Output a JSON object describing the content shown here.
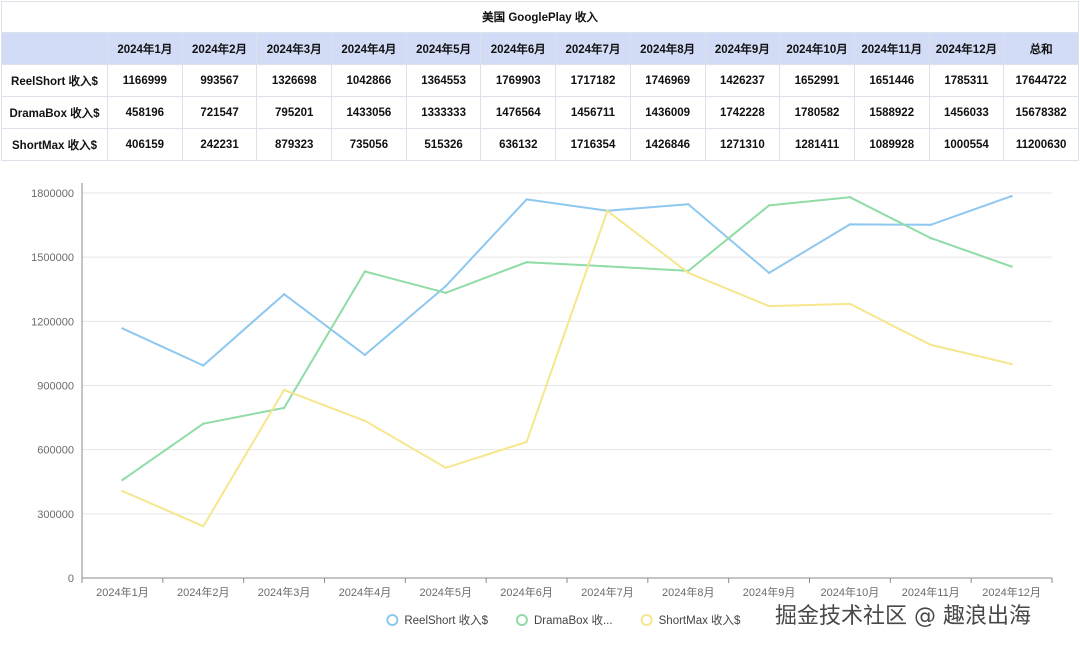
{
  "table": {
    "title": "美国 GooglePlay 收入",
    "columns": [
      "2024年1月",
      "2024年2月",
      "2024年3月",
      "2024年4月",
      "2024年5月",
      "2024年6月",
      "2024年7月",
      "2024年8月",
      "2024年9月",
      "2024年10月",
      "2024年11月",
      "2024年12月",
      "总和"
    ],
    "rows": [
      {
        "label": "ReelShort 收入$",
        "cells": [
          "1166999",
          "993567",
          "1326698",
          "1042866",
          "1364553",
          "1769903",
          "1717182",
          "1746969",
          "1426237",
          "1652991",
          "1651446",
          "1785311",
          "17644722"
        ]
      },
      {
        "label": "DramaBox 收入$",
        "cells": [
          "458196",
          "721547",
          "795201",
          "1433056",
          "1333333",
          "1476564",
          "1456711",
          "1436009",
          "1742228",
          "1780582",
          "1588922",
          "1456033",
          "15678382"
        ]
      },
      {
        "label": "ShortMax 收入$",
        "cells": [
          "406159",
          "242231",
          "879323",
          "735056",
          "515326",
          "636132",
          "1716354",
          "1426846",
          "1271310",
          "1281411",
          "1089928",
          "1000554",
          "11200630"
        ]
      }
    ]
  },
  "chart_data": {
    "type": "line",
    "categories": [
      "2024年1月",
      "2024年2月",
      "2024年3月",
      "2024年4月",
      "2024年5月",
      "2024年6月",
      "2024年7月",
      "2024年8月",
      "2024年9月",
      "2024年10月",
      "2024年11月",
      "2024年12月"
    ],
    "yticks": [
      "0",
      "300000",
      "600000",
      "900000",
      "1200000",
      "1500000",
      "1800000"
    ],
    "ylim": [
      0,
      1800000
    ],
    "grid": true,
    "legend_position": "bottom",
    "series": [
      {
        "name": "ReelShort 收入$",
        "legend_label": "ReelShort 收入$",
        "color": "#8ec8ef",
        "values": [
          1166999,
          993567,
          1326698,
          1042866,
          1364553,
          1769903,
          1717182,
          1746969,
          1426237,
          1652991,
          1651446,
          1785311
        ]
      },
      {
        "name": "DramaBox 收入$",
        "legend_label": "DramaBox 收...",
        "color": "#8fdca6",
        "values": [
          458196,
          721547,
          795201,
          1433056,
          1333333,
          1476564,
          1456711,
          1436009,
          1742228,
          1780582,
          1588922,
          1456033
        ]
      },
      {
        "name": "ShortMax 收入$",
        "legend_label": "ShortMax 收入$",
        "color": "#f6e68d",
        "values": [
          406159,
          242231,
          879323,
          735056,
          515326,
          636132,
          1716354,
          1426846,
          1271310,
          1281411,
          1089928,
          1000554
        ]
      }
    ]
  },
  "watermark": "掘金技术社区 @ 趣浪出海"
}
